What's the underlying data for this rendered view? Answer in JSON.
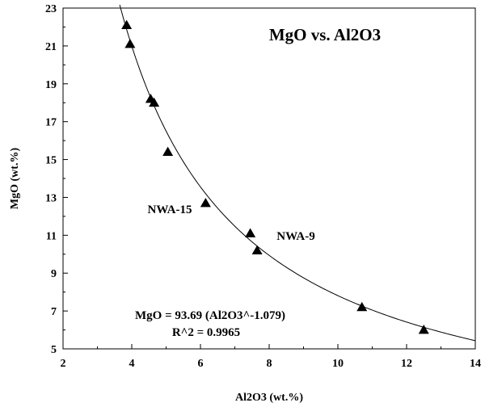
{
  "chart_data": {
    "type": "scatter",
    "title": "MgO vs. Al2O3",
    "xlabel": "Al2O3 (wt.%)",
    "ylabel": "MgO (wt.%)",
    "xlim": [
      2,
      14
    ],
    "ylim": [
      5,
      23
    ],
    "xticks": [
      "2",
      "4",
      "6",
      "8",
      "10",
      "12",
      "14"
    ],
    "yticks": [
      "5",
      "7",
      "9",
      "11",
      "13",
      "15",
      "17",
      "19",
      "21",
      "23"
    ],
    "grid": false,
    "marker": "triangle",
    "points": [
      {
        "x": 3.85,
        "y": 22.1
      },
      {
        "x": 3.95,
        "y": 21.1
      },
      {
        "x": 4.55,
        "y": 18.2
      },
      {
        "x": 4.65,
        "y": 18.0
      },
      {
        "x": 5.05,
        "y": 15.4
      },
      {
        "x": 6.15,
        "y": 12.7
      },
      {
        "x": 7.45,
        "y": 11.1
      },
      {
        "x": 7.65,
        "y": 10.2
      },
      {
        "x": 10.7,
        "y": 7.2
      },
      {
        "x": 12.5,
        "y": 6.0
      }
    ],
    "fit": {
      "a": 93.69,
      "b": -1.079,
      "x_range": [
        3.65,
        14
      ]
    },
    "annotations": {
      "label_nwa15": "NWA-15",
      "label_nwa9": "NWA-9",
      "equation": "MgO = 93.69 (Al2O3^-1.079)",
      "r_squared": "R^2 = 0.9965"
    }
  }
}
